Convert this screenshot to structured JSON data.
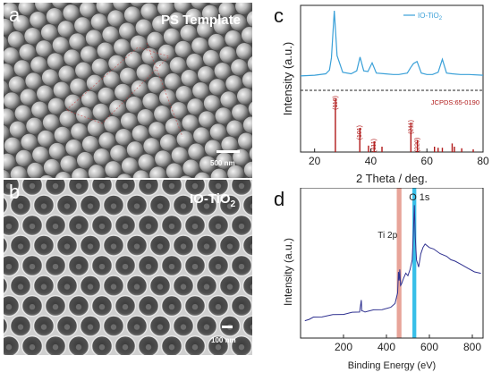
{
  "panels": {
    "a": {
      "letter": "a",
      "title": "PS Template",
      "scale": "500 nm"
    },
    "b": {
      "letter": "b",
      "title_main": "IO-TiO",
      "title_sub": "2",
      "scale": "100 nm"
    },
    "c": {
      "letter": "c"
    },
    "d": {
      "letter": "d"
    }
  },
  "chart_data": [
    {
      "type": "line",
      "panel": "c",
      "xlabel": "2 Theta / deg.",
      "ylabel": "Intensity (a.u.)",
      "xlim": [
        15,
        80
      ],
      "xticks": [
        20,
        40,
        60,
        80
      ],
      "series": [
        {
          "name": "IO-TiO",
          "name_sub": "2",
          "color": "#3aa0d8",
          "x": [
            15,
            20,
            24,
            25.3,
            26,
            27,
            28,
            30,
            33,
            35,
            36.2,
            37.5,
            39,
            40.5,
            42,
            45,
            48,
            50,
            53,
            54.3,
            55.2,
            56.5,
            58,
            60,
            62,
            64,
            65.5,
            67,
            69,
            72,
            75,
            80
          ],
          "y": [
            0.1,
            0.11,
            0.13,
            0.18,
            0.35,
            1.0,
            0.38,
            0.15,
            0.13,
            0.17,
            0.36,
            0.17,
            0.16,
            0.28,
            0.14,
            0.13,
            0.12,
            0.12,
            0.14,
            0.22,
            0.27,
            0.3,
            0.14,
            0.12,
            0.12,
            0.15,
            0.33,
            0.14,
            0.13,
            0.12,
            0.12,
            0.11
          ]
        }
      ],
      "reference": {
        "label": "JCPDS:65-0190",
        "color": "#b01818",
        "peaks": [
          {
            "x": 27.4,
            "h": 1.0,
            "label": "(110)"
          },
          {
            "x": 36.1,
            "h": 0.45,
            "label": "(101)"
          },
          {
            "x": 39.2,
            "h": 0.12,
            "label": ""
          },
          {
            "x": 41.2,
            "h": 0.2,
            "label": "(111)"
          },
          {
            "x": 44.0,
            "h": 0.1,
            "label": ""
          },
          {
            "x": 54.3,
            "h": 0.55,
            "label": "(211)"
          },
          {
            "x": 56.6,
            "h": 0.22,
            "label": "(220)"
          },
          {
            "x": 62.7,
            "h": 0.1,
            "label": ""
          },
          {
            "x": 64.0,
            "h": 0.08,
            "label": ""
          },
          {
            "x": 65.5,
            "h": 0.08,
            "label": ""
          },
          {
            "x": 69.0,
            "h": 0.16,
            "label": ""
          },
          {
            "x": 69.8,
            "h": 0.1,
            "label": ""
          },
          {
            "x": 72.4,
            "h": 0.07,
            "label": ""
          },
          {
            "x": 76.5,
            "h": 0.05,
            "label": ""
          }
        ]
      }
    },
    {
      "type": "line",
      "panel": "d",
      "xlabel": "Binding Energy (eV)",
      "ylabel": "Intensity (a.u.)",
      "xlim": [
        0,
        850
      ],
      "xticks": [
        200,
        400,
        600,
        800
      ],
      "highlights": [
        {
          "x": 459,
          "width": 22,
          "color": "#e59a8e",
          "label": "Ti 2p"
        },
        {
          "x": 530,
          "width": 18,
          "color": "#22b8e6",
          "label": "O 1s"
        }
      ],
      "series": [
        {
          "name": "",
          "color": "#2f3190",
          "x": [
            20,
            40,
            60,
            100,
            150,
            200,
            240,
            275,
            283,
            285,
            290,
            300,
            340,
            380,
            420,
            440,
            452,
            456,
            459,
            462,
            466,
            470,
            480,
            490,
            500,
            510,
            520,
            526,
            530,
            534,
            540,
            550,
            560,
            570,
            580,
            600,
            620,
            650,
            680,
            700,
            720,
            750,
            780,
            810,
            840
          ],
          "y": [
            0.05,
            0.07,
            0.08,
            0.09,
            0.1,
            0.11,
            0.12,
            0.13,
            0.22,
            0.14,
            0.13,
            0.13,
            0.14,
            0.15,
            0.16,
            0.2,
            0.28,
            0.46,
            0.38,
            0.48,
            0.34,
            0.36,
            0.4,
            0.45,
            0.42,
            0.48,
            0.55,
            0.8,
            1.0,
            0.75,
            0.55,
            0.5,
            0.6,
            0.66,
            0.68,
            0.66,
            0.64,
            0.61,
            0.58,
            0.56,
            0.54,
            0.52,
            0.48,
            0.46,
            0.44
          ]
        }
      ]
    }
  ]
}
